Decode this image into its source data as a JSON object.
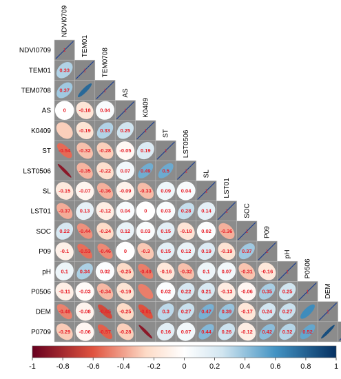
{
  "chart_data": {
    "type": "heatmap",
    "variables": [
      "NDVI0709",
      "TEM01",
      "TEM0708",
      "AS",
      "K0409",
      "ST",
      "LST0506",
      "SL",
      "LST01",
      "SOC",
      "P09",
      "pH",
      "P0506",
      "DEM",
      "P0709"
    ],
    "diagonal_label": "1",
    "lower_triangle": [
      [],
      [
        0.33
      ],
      [
        0.37,
        0.77
      ],
      [
        0,
        -0.18,
        0.04
      ],
      [
        -0.28,
        -0.19,
        0.33,
        0.25
      ],
      [
        -0.54,
        -0.32,
        -0.28,
        -0.05,
        0.19
      ],
      [
        -0.88,
        -0.35,
        -0.22,
        0.07,
        0.49,
        0.5
      ],
      [
        -0.15,
        -0.07,
        -0.36,
        -0.09,
        -0.33,
        0.09,
        0.04
      ],
      [
        -0.37,
        0.13,
        -0.12,
        0.04,
        0,
        0.03,
        0.28,
        0.14
      ],
      [
        0.22,
        -0.44,
        -0.24,
        0.12,
        0.03,
        0.15,
        -0.18,
        0.02,
        -0.36
      ],
      [
        -0.1,
        -0.53,
        -0.46,
        0,
        -0.3,
        0.15,
        0.12,
        0.19,
        -0.19,
        0.37
      ],
      [
        0.1,
        0.34,
        0.02,
        -0.25,
        -0.49,
        -0.16,
        -0.32,
        0.1,
        0.07,
        -0.31,
        -0.16
      ],
      [
        -0.11,
        -0.03,
        -0.34,
        -0.19,
        -0.49,
        0.02,
        0.22,
        0.21,
        -0.13,
        -0.06,
        0.35,
        0.25
      ],
      [
        -0.48,
        -0.08,
        -0.65,
        -0.25,
        -0.61,
        0.3,
        0.27,
        0.47,
        0.39,
        -0.17,
        0.24,
        0.27,
        0.63
      ],
      [
        -0.29,
        -0.06,
        -0.57,
        -0.28,
        -0.88,
        0.16,
        0.07,
        0.44,
        0.26,
        -0.12,
        0.42,
        0.32,
        0.52,
        0.88
      ]
    ],
    "hidden_label_cells": [
      [
        6,
        0
      ],
      [
        4,
        0
      ],
      [
        2,
        1
      ],
      [
        14,
        4
      ],
      [
        14,
        13
      ],
      [
        13,
        12
      ],
      [
        12,
        4
      ]
    ],
    "colorbar": {
      "range": [
        -1,
        1
      ],
      "ticks": [
        "-1",
        "-0.8",
        "-0.6",
        "-0.4",
        "-0.2",
        "0",
        "0.2",
        "0.4",
        "0.6",
        "0.8",
        "1"
      ]
    },
    "colors": {
      "neg_strong": "#67001f",
      "neg_mid": "#e0533f",
      "neg_light": "#fddbc7",
      "zero": "#ffffff",
      "pos_light": "#d1e5f0",
      "pos_mid": "#4393c3",
      "pos_strong": "#053061",
      "diagonal_cell": "#888888",
      "value_text": "#e8202a",
      "grid_line": "#bfbfbf"
    }
  }
}
